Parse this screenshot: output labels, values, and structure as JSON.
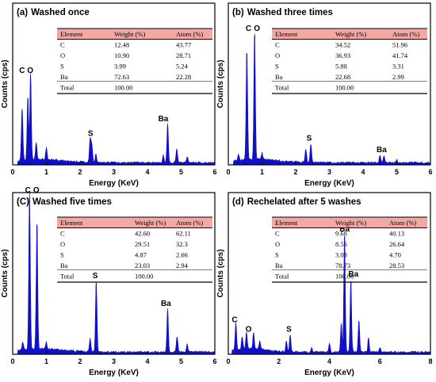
{
  "chart_data": [
    {
      "type": "area",
      "panel_label": "(a)",
      "title": "Washed once",
      "xlabel": "Energy (KeV)",
      "ylabel": "Counts (cps)",
      "xlim": [
        0,
        6
      ],
      "xticks": [
        "0",
        "1",
        "2",
        "3",
        "4",
        "5",
        "6"
      ],
      "table": {
        "headers": [
          "Element",
          "Weight (%)",
          "Atom (%)"
        ],
        "rows": [
          [
            "C",
            "12.48",
            "43.77"
          ],
          [
            "O",
            "10.90",
            "28.71"
          ],
          [
            "S",
            "3.99",
            "5.24"
          ],
          [
            "Ba",
            "72.63",
            "22.28"
          ],
          [
            "Total",
            "100.00",
            ""
          ]
        ]
      },
      "peak_labels": [
        {
          "text": "C",
          "x": 0.28
        },
        {
          "text": "O",
          "x": 0.52
        },
        {
          "text": "S",
          "x": 2.31
        },
        {
          "text": "Ba",
          "x": 4.47
        }
      ],
      "peaks": [
        {
          "x": 0.28,
          "y": 0.33
        },
        {
          "x": 0.45,
          "y": 0.4
        },
        {
          "x": 0.53,
          "y": 0.54
        },
        {
          "x": 0.7,
          "y": 0.11
        },
        {
          "x": 1.0,
          "y": 0.07
        },
        {
          "x": 2.3,
          "y": 0.15
        },
        {
          "x": 2.35,
          "y": 0.11
        },
        {
          "x": 2.47,
          "y": 0.05
        },
        {
          "x": 4.47,
          "y": 0.05
        },
        {
          "x": 4.6,
          "y": 0.24
        },
        {
          "x": 4.87,
          "y": 0.09
        },
        {
          "x": 5.18,
          "y": 0.04
        }
      ]
    },
    {
      "type": "area",
      "panel_label": "(b)",
      "title": "Washed three times",
      "xlabel": "Energy (KeV)",
      "ylabel": "Counts (cps)",
      "xlim": [
        0,
        6
      ],
      "xticks": [
        "0",
        "1",
        "2",
        "3",
        "4",
        "5",
        "6"
      ],
      "table": {
        "headers": [
          "Element",
          "Weight (%)",
          "Atom (%)"
        ],
        "rows": [
          [
            "C",
            "34.52",
            "51.96"
          ],
          [
            "O",
            "36.93",
            "41.74"
          ],
          [
            "S",
            "5.88",
            "3.31"
          ],
          [
            "Ba",
            "22.68",
            "2.99"
          ],
          [
            "Total",
            "100.00",
            ""
          ]
        ]
      },
      "peak_labels": [
        {
          "text": "C",
          "x": 0.6
        },
        {
          "text": "O",
          "x": 0.85
        },
        {
          "text": "S",
          "x": 2.4
        },
        {
          "text": "Ba",
          "x": 4.55
        }
      ],
      "peaks": [
        {
          "x": 0.3,
          "y": 0.04
        },
        {
          "x": 0.55,
          "y": 0.69
        },
        {
          "x": 0.78,
          "y": 0.8
        },
        {
          "x": 1.0,
          "y": 0.04
        },
        {
          "x": 2.3,
          "y": 0.08
        },
        {
          "x": 2.45,
          "y": 0.12
        },
        {
          "x": 4.5,
          "y": 0.05
        },
        {
          "x": 4.62,
          "y": 0.04
        },
        {
          "x": 5.0,
          "y": 0.02
        }
      ]
    },
    {
      "type": "area",
      "panel_label": "(C)",
      "title": "Washed five times",
      "xlabel": "Energy (KeV)",
      "ylabel": "Counts (cps)",
      "xlim": [
        0,
        6
      ],
      "xticks": [
        "0",
        "1",
        "2",
        "3",
        "4",
        "5",
        "6"
      ],
      "table": {
        "headers": [
          "Element",
          "Weight (%)",
          "Atom (%)"
        ],
        "rows": [
          [
            "C",
            "42.60",
            "62.11"
          ],
          [
            "O",
            "29.51",
            "32.3"
          ],
          [
            "S",
            "4.87",
            "2.66"
          ],
          [
            "Ba",
            "23.03",
            "2.94"
          ],
          [
            "Total",
            "100.00",
            ""
          ]
        ]
      },
      "peak_labels": [
        {
          "text": "C",
          "x": 0.45
        },
        {
          "text": "O",
          "x": 0.7
        },
        {
          "text": "S",
          "x": 2.45
        },
        {
          "text": "Ba",
          "x": 4.55
        }
      ],
      "peaks": [
        {
          "x": 0.3,
          "y": 0.05
        },
        {
          "x": 0.5,
          "y": 0.97
        },
        {
          "x": 0.72,
          "y": 0.8
        },
        {
          "x": 1.0,
          "y": 0.04
        },
        {
          "x": 2.3,
          "y": 0.08
        },
        {
          "x": 2.48,
          "y": 0.44
        },
        {
          "x": 4.6,
          "y": 0.27
        },
        {
          "x": 4.88,
          "y": 0.1
        },
        {
          "x": 5.18,
          "y": 0.05
        }
      ]
    },
    {
      "type": "area",
      "panel_label": "(d)",
      "title": "Rechelated after 5 washes",
      "xlabel": "Energy (KeV)",
      "ylabel": "Counts (cps)",
      "xlim": [
        0,
        8
      ],
      "xticks": [
        "0",
        "2",
        "4",
        "6",
        "8"
      ],
      "table": {
        "headers": [
          "Element",
          "Weight (%)",
          "Atom (%)"
        ],
        "rows": [
          [
            "C",
            "9.68",
            "40.13"
          ],
          [
            "O",
            "8.56",
            "26.64"
          ],
          [
            "S",
            "3.03",
            "4.70"
          ],
          [
            "Ba",
            "78.73",
            "28.53"
          ],
          [
            "Total",
            "100.00",
            ""
          ]
        ]
      },
      "peak_labels": [
        {
          "text": "C",
          "x": 0.25
        },
        {
          "text": "O",
          "x": 0.8
        },
        {
          "text": "S",
          "x": 2.4
        },
        {
          "text": "Ba",
          "x": 4.6
        },
        {
          "text": "Ba",
          "x": 4.95
        }
      ],
      "peaks": [
        {
          "x": 0.3,
          "y": 0.17
        },
        {
          "x": 0.55,
          "y": 0.08
        },
        {
          "x": 0.72,
          "y": 0.11
        },
        {
          "x": 1.0,
          "y": 0.1
        },
        {
          "x": 1.25,
          "y": 0.05
        },
        {
          "x": 2.3,
          "y": 0.07
        },
        {
          "x": 2.45,
          "y": 0.11
        },
        {
          "x": 3.3,
          "y": 0.03
        },
        {
          "x": 4.0,
          "y": 0.05
        },
        {
          "x": 4.47,
          "y": 0.18
        },
        {
          "x": 4.6,
          "y": 0.73
        },
        {
          "x": 4.85,
          "y": 0.45
        },
        {
          "x": 5.17,
          "y": 0.2
        },
        {
          "x": 5.55,
          "y": 0.09
        },
        {
          "x": 6.0,
          "y": 0.03
        }
      ]
    }
  ],
  "colors": {
    "spectrum": "#1010c8",
    "table_header": "#f4a8a4",
    "frame": "#000000"
  }
}
